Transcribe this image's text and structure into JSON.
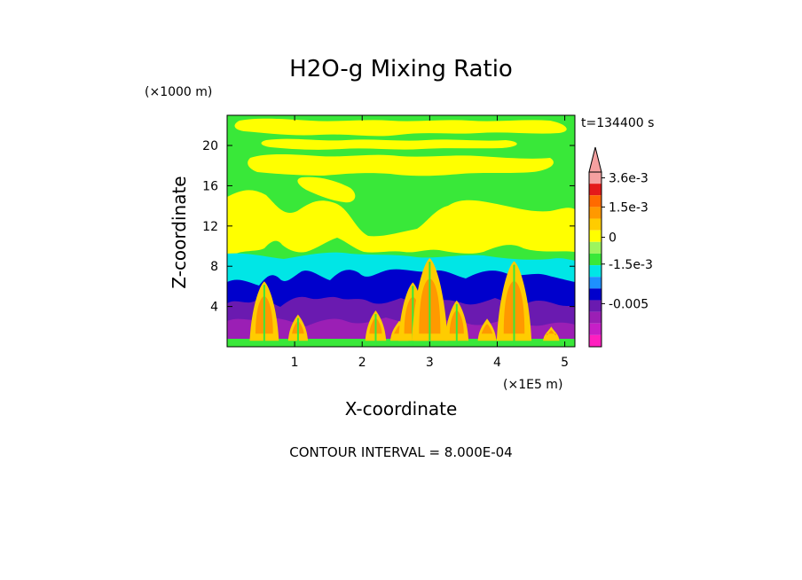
{
  "chart_data": {
    "type": "heatmap",
    "title": "H2O-g Mixing Ratio",
    "xlabel": "X-coordinate",
    "ylabel": "Z-coordinate",
    "x_unit": "(×1E5 m)",
    "y_unit": "(×1000 m)",
    "time_label": "t=134400 s",
    "footer": "CONTOUR INTERVAL = 8.000E-04",
    "xlim": [
      0,
      5.15
    ],
    "ylim": [
      0,
      23
    ],
    "x_ticks": [
      1,
      2,
      3,
      4,
      5
    ],
    "x_tick_labels": [
      "1",
      "2",
      "3",
      "4",
      "5"
    ],
    "y_ticks": [
      4,
      8,
      12,
      16,
      20
    ],
    "y_tick_labels": [
      "4",
      "8",
      "12",
      "16",
      "20"
    ],
    "colorbar": {
      "labels": [
        "3.6e-3",
        "1.5e-3",
        "0",
        "-1.5e-3",
        "-0.005"
      ],
      "colors": [
        "#f5a0a0",
        "#e41a1a",
        "#ff6a00",
        "#ff9900",
        "#ffcc00",
        "#ffff00",
        "#9cf55e",
        "#39e839",
        "#00e6e6",
        "#1e90ff",
        "#0000cc",
        "#6a1ab0",
        "#9b1fb5",
        "#c71fc7",
        "#ff1fbf"
      ]
    },
    "layers": [
      {
        "zmin": 0,
        "zmax": 0.6,
        "level": "-0.005",
        "color": "#c71fc7"
      },
      {
        "zmin": 0.6,
        "zmax": 6,
        "level": "below -1.5e-3",
        "color": "#6a1ab0"
      },
      {
        "zmin": 6,
        "zmax": 7.5,
        "level": "-1.5e-3",
        "color": "#0000cc"
      },
      {
        "zmin": 7.5,
        "zmax": 9,
        "level": "-8e-4",
        "color": "#00e6e6"
      },
      {
        "zmin": 9,
        "zmax": 14.5,
        "level": "0",
        "color": "#39e839"
      },
      {
        "zmin": 14.5,
        "zmax": 23,
        "level": "0 to 8e-4",
        "color": "#ffff00"
      }
    ],
    "plumes_x": [
      0.55,
      1.05,
      2.2,
      2.55,
      2.75,
      3.0,
      3.4,
      3.85,
      4.25,
      4.8
    ]
  }
}
